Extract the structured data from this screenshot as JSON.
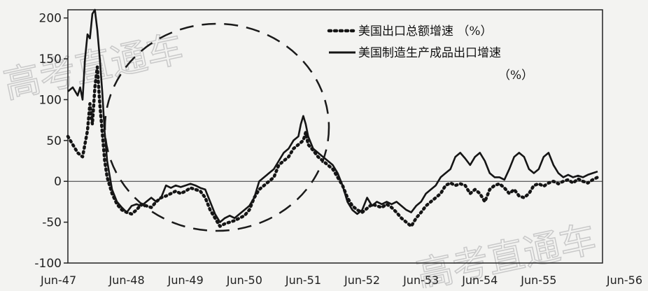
{
  "chart_data": {
    "type": "line",
    "title": "",
    "xlabel": "",
    "ylabel": "",
    "ylim": [
      -100,
      210
    ],
    "yticks": [
      200,
      150,
      100,
      50,
      0,
      -50,
      -100
    ],
    "ytick_labels": [
      "200",
      "150",
      "100",
      "50",
      "0",
      "-50",
      "-100"
    ],
    "xlim": [
      0,
      109
    ],
    "xticks": [
      0,
      12,
      24,
      36,
      48,
      60,
      72,
      84,
      96,
      108
    ],
    "xtick_labels": [
      "Jun-47",
      "Jun-48",
      "Jun-49",
      "Jun-50",
      "Jun-51",
      "Jun-52",
      "Jun-53",
      "Jun-54",
      "Jun-55",
      "Jun-56"
    ],
    "legend_position": "top-right",
    "grid": false,
    "zero_line": true,
    "series": [
      {
        "name": "美国出口总额增速 （%）",
        "style": "dotted",
        "color": "#151515",
        "points": [
          [
            0,
            55
          ],
          [
            1,
            45
          ],
          [
            2,
            35
          ],
          [
            3,
            30
          ],
          [
            4,
            62
          ],
          [
            4.5,
            95
          ],
          [
            5,
            70
          ],
          [
            5.5,
            115
          ],
          [
            6,
            140
          ],
          [
            6.5,
            95
          ],
          [
            7,
            60
          ],
          [
            7.5,
            25
          ],
          [
            8,
            5
          ],
          [
            9,
            -15
          ],
          [
            10,
            -28
          ],
          [
            11,
            -35
          ],
          [
            12,
            -38
          ],
          [
            13,
            -40
          ],
          [
            14,
            -35
          ],
          [
            15,
            -28
          ],
          [
            16,
            -30
          ],
          [
            17,
            -32
          ],
          [
            18,
            -25
          ],
          [
            19,
            -20
          ],
          [
            20,
            -18
          ],
          [
            21,
            -15
          ],
          [
            22,
            -12
          ],
          [
            23,
            -15
          ],
          [
            24,
            -12
          ],
          [
            25,
            -8
          ],
          [
            26,
            -10
          ],
          [
            27,
            -12
          ],
          [
            28,
            -20
          ],
          [
            29,
            -35
          ],
          [
            30,
            -45
          ],
          [
            31,
            -55
          ],
          [
            32,
            -52
          ],
          [
            33,
            -50
          ],
          [
            34,
            -48
          ],
          [
            35,
            -45
          ],
          [
            36,
            -42
          ],
          [
            37,
            -35
          ],
          [
            38,
            -20
          ],
          [
            39,
            -10
          ],
          [
            40,
            -5
          ],
          [
            41,
            0
          ],
          [
            42,
            5
          ],
          [
            43,
            20
          ],
          [
            44,
            25
          ],
          [
            45,
            30
          ],
          [
            46,
            40
          ],
          [
            47,
            45
          ],
          [
            48,
            50
          ],
          [
            48.5,
            60
          ],
          [
            49,
            45
          ],
          [
            50,
            38
          ],
          [
            51,
            30
          ],
          [
            52,
            25
          ],
          [
            53,
            20
          ],
          [
            54,
            15
          ],
          [
            55,
            5
          ],
          [
            56,
            -5
          ],
          [
            57,
            -20
          ],
          [
            58,
            -30
          ],
          [
            59,
            -35
          ],
          [
            60,
            -38
          ],
          [
            61,
            -33
          ],
          [
            62,
            -28
          ],
          [
            63,
            -30
          ],
          [
            64,
            -32
          ],
          [
            65,
            -28
          ],
          [
            66,
            -32
          ],
          [
            67,
            -38
          ],
          [
            68,
            -45
          ],
          [
            69,
            -50
          ],
          [
            70,
            -55
          ],
          [
            71,
            -45
          ],
          [
            72,
            -38
          ],
          [
            73,
            -30
          ],
          [
            74,
            -25
          ],
          [
            75,
            -20
          ],
          [
            76,
            -15
          ],
          [
            77,
            -5
          ],
          [
            78,
            -2
          ],
          [
            79,
            -5
          ],
          [
            80,
            -3
          ],
          [
            81,
            -5
          ],
          [
            82,
            -15
          ],
          [
            83,
            -10
          ],
          [
            84,
            -15
          ],
          [
            85,
            -25
          ],
          [
            86,
            -10
          ],
          [
            87,
            -5
          ],
          [
            88,
            -3
          ],
          [
            89,
            -8
          ],
          [
            90,
            -15
          ],
          [
            91,
            -10
          ],
          [
            92,
            -18
          ],
          [
            93,
            -20
          ],
          [
            94,
            -15
          ],
          [
            95,
            -5
          ],
          [
            96,
            -3
          ],
          [
            97,
            -6
          ],
          [
            98,
            -2
          ],
          [
            99,
            0
          ],
          [
            100,
            -3
          ],
          [
            101,
            0
          ],
          [
            102,
            2
          ],
          [
            103,
            -2
          ],
          [
            104,
            3
          ],
          [
            105,
            0
          ],
          [
            106,
            -2
          ],
          [
            107,
            2
          ],
          [
            108,
            5
          ]
        ]
      },
      {
        "name": "美国制造生产成品出口增速 （%）",
        "style": "solid",
        "color": "#151515",
        "points": [
          [
            0,
            110
          ],
          [
            1,
            115
          ],
          [
            2,
            105
          ],
          [
            2.5,
            115
          ],
          [
            3,
            100
          ],
          [
            3.5,
            150
          ],
          [
            4,
            180
          ],
          [
            4.5,
            175
          ],
          [
            5,
            205
          ],
          [
            5.5,
            210
          ],
          [
            6,
            185
          ],
          [
            6.5,
            150
          ],
          [
            7,
            110
          ],
          [
            7.5,
            60
          ],
          [
            8,
            25
          ],
          [
            9,
            -10
          ],
          [
            10,
            -25
          ],
          [
            11,
            -32
          ],
          [
            12,
            -38
          ],
          [
            13,
            -30
          ],
          [
            14,
            -28
          ],
          [
            15,
            -30
          ],
          [
            16,
            -25
          ],
          [
            17,
            -20
          ],
          [
            18,
            -25
          ],
          [
            19,
            -20
          ],
          [
            20,
            -5
          ],
          [
            21,
            -8
          ],
          [
            22,
            -5
          ],
          [
            23,
            -7
          ],
          [
            24,
            -5
          ],
          [
            25,
            -3
          ],
          [
            26,
            -5
          ],
          [
            27,
            -8
          ],
          [
            28,
            -10
          ],
          [
            29,
            -25
          ],
          [
            30,
            -40
          ],
          [
            31,
            -50
          ],
          [
            32,
            -45
          ],
          [
            33,
            -42
          ],
          [
            34,
            -45
          ],
          [
            35,
            -40
          ],
          [
            36,
            -35
          ],
          [
            37,
            -30
          ],
          [
            38,
            -20
          ],
          [
            39,
            0
          ],
          [
            40,
            5
          ],
          [
            41,
            10
          ],
          [
            42,
            15
          ],
          [
            43,
            25
          ],
          [
            44,
            35
          ],
          [
            45,
            40
          ],
          [
            46,
            50
          ],
          [
            47,
            55
          ],
          [
            47.5,
            70
          ],
          [
            48,
            80
          ],
          [
            48.5,
            70
          ],
          [
            49,
            55
          ],
          [
            50,
            40
          ],
          [
            51,
            35
          ],
          [
            52,
            30
          ],
          [
            53,
            25
          ],
          [
            54,
            20
          ],
          [
            55,
            10
          ],
          [
            56,
            -5
          ],
          [
            57,
            -25
          ],
          [
            58,
            -35
          ],
          [
            59,
            -40
          ],
          [
            60,
            -35
          ],
          [
            61,
            -20
          ],
          [
            62,
            -30
          ],
          [
            63,
            -25
          ],
          [
            64,
            -28
          ],
          [
            65,
            -25
          ],
          [
            66,
            -28
          ],
          [
            67,
            -25
          ],
          [
            68,
            -30
          ],
          [
            69,
            -35
          ],
          [
            70,
            -38
          ],
          [
            71,
            -30
          ],
          [
            72,
            -25
          ],
          [
            73,
            -15
          ],
          [
            74,
            -10
          ],
          [
            75,
            -5
          ],
          [
            76,
            5
          ],
          [
            77,
            10
          ],
          [
            78,
            15
          ],
          [
            79,
            30
          ],
          [
            80,
            35
          ],
          [
            81,
            28
          ],
          [
            82,
            20
          ],
          [
            83,
            30
          ],
          [
            84,
            35
          ],
          [
            85,
            25
          ],
          [
            86,
            10
          ],
          [
            87,
            5
          ],
          [
            88,
            5
          ],
          [
            89,
            2
          ],
          [
            90,
            15
          ],
          [
            91,
            30
          ],
          [
            92,
            35
          ],
          [
            93,
            30
          ],
          [
            94,
            15
          ],
          [
            95,
            10
          ],
          [
            96,
            15
          ],
          [
            97,
            30
          ],
          [
            98,
            35
          ],
          [
            99,
            20
          ],
          [
            100,
            10
          ],
          [
            101,
            5
          ],
          [
            102,
            8
          ],
          [
            103,
            5
          ],
          [
            104,
            7
          ],
          [
            105,
            5
          ],
          [
            106,
            8
          ],
          [
            107,
            10
          ],
          [
            108,
            12
          ]
        ]
      }
    ]
  }
}
